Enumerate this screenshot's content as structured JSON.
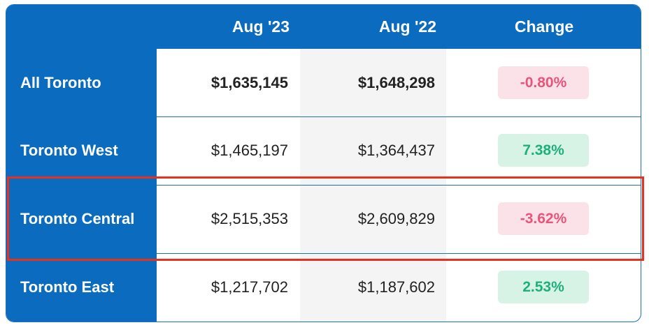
{
  "header": {
    "col_aug23": "Aug '23",
    "col_aug22": "Aug '22",
    "col_change": "Change"
  },
  "rows": [
    {
      "region": "All Toronto",
      "aug23": "$1,635,145",
      "aug22": "$1,648,298",
      "change": "-0.80%",
      "trend": "negative"
    },
    {
      "region": "Toronto West",
      "aug23": "$1,465,197",
      "aug22": "$1,364,437",
      "change": "7.38%",
      "trend": "positive"
    },
    {
      "region": "Toronto Central",
      "aug23": "$2,515,353",
      "aug22": "$2,609,829",
      "change": "-3.62%",
      "trend": "negative"
    },
    {
      "region": "Toronto East",
      "aug23": "$1,217,702",
      "aug22": "$1,187,602",
      "change": "2.53%",
      "trend": "positive"
    }
  ],
  "colors": {
    "header_bg": "#0a6bbf",
    "negative_text": "#e8557a",
    "negative_bg": "#fbe1e8",
    "positive_text": "#1fb07a",
    "positive_bg": "#d6f3e6",
    "highlight_border": "#e8311d"
  }
}
